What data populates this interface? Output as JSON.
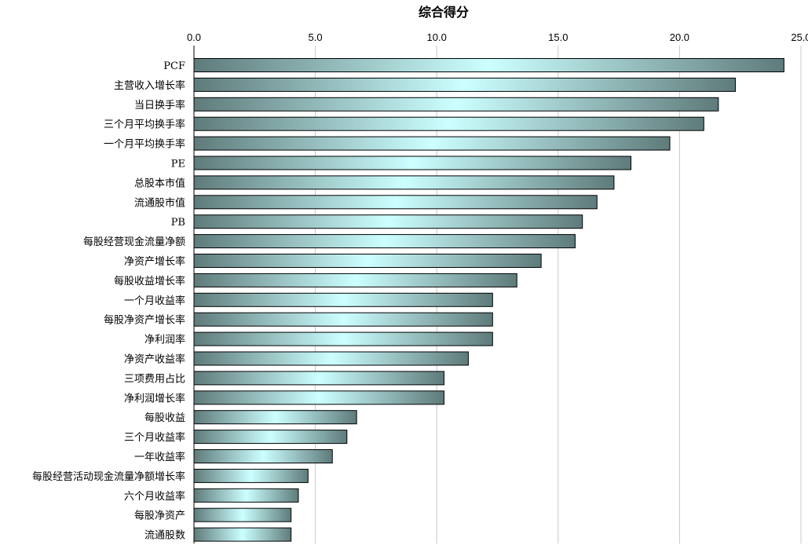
{
  "chart_data": {
    "type": "bar",
    "orientation": "horizontal",
    "title": "综合得分",
    "xlim": [
      0,
      25
    ],
    "xticks": [
      "0.0",
      "5.0",
      "10.0",
      "15.0",
      "20.0",
      "25.0"
    ],
    "tick_position": "top",
    "grid": true,
    "legend": "none",
    "bar_colors": {
      "edge": "#5f7b7b",
      "center": "#ccffff",
      "outline": "#000000"
    },
    "categories": [
      "PCF",
      "主营收入增长率",
      "当日换手率",
      "三个月平均换手率",
      "一个月平均换手率",
      "PE",
      "总股本市值",
      "流通股市值",
      "PB",
      "每股经营现金流量净额",
      "净资产增长率",
      "每股收益增长率",
      "一个月收益率",
      "每股净资产增长率",
      "净利润率",
      "净资产收益率",
      "三项费用占比",
      "净利润增长率",
      "每股收益",
      "三个月收益率",
      "一年收益率",
      "每股经营活动现金流量净额增长率",
      "六个月收益率",
      "每股净资产",
      "流通股数"
    ],
    "values": [
      24.3,
      22.3,
      21.6,
      21.0,
      19.6,
      18.0,
      17.3,
      16.6,
      16.0,
      15.7,
      14.3,
      13.3,
      12.3,
      12.3,
      12.3,
      11.3,
      10.3,
      10.3,
      6.7,
      6.3,
      5.7,
      4.7,
      4.3,
      4.0,
      4.0
    ]
  }
}
